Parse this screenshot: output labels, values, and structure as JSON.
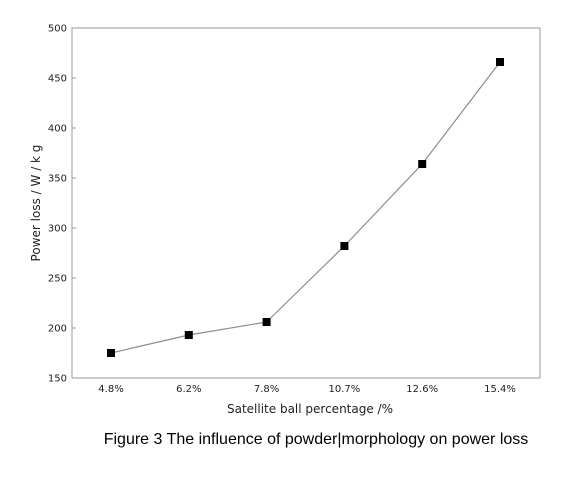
{
  "chart_data": {
    "type": "line",
    "categories": [
      "4.8%",
      "6.2%",
      "7.8%",
      "10.7%",
      "12.6%",
      "15.4%"
    ],
    "values": [
      175,
      193,
      206,
      282,
      364,
      466
    ],
    "xlabel": "Satellite ball percentage /%",
    "ylabel": "Power loss / W / k g",
    "ylim": [
      150,
      500
    ],
    "yticks": [
      "150",
      "200",
      "250",
      "300",
      "350",
      "400",
      "450",
      "500"
    ],
    "grid": false,
    "marker": "square",
    "colors": {
      "line": "#8c8c8c",
      "marker": "#000000",
      "frame": "#9a9a9a"
    }
  },
  "caption": "Figure 3 The influence of powder|morphology on power loss"
}
